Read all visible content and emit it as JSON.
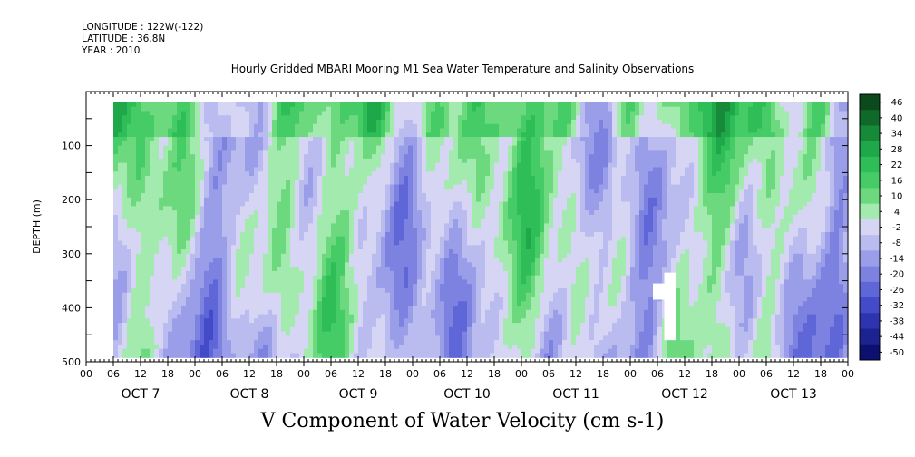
{
  "header": {
    "longitude": "LONGITUDE : 122W(-122)",
    "latitude": "LATITUDE : 36.8N",
    "year": "YEAR : 2010",
    "title": "Hourly Gridded MBARI Mooring M1 Sea Water Temperature and Salinity Observations"
  },
  "chart_data": {
    "type": "heatmap",
    "title": "Hourly Gridded MBARI Mooring M1 Sea Water Temperature and Salinity Observations",
    "xlabel": "V Component of Water Velocity (cm s-1)",
    "ylabel": "DEPTH (m)",
    "ylim": [
      500,
      0
    ],
    "yticks": [
      "100",
      "200",
      "300",
      "400",
      "500"
    ],
    "hour_ticks": [
      "00",
      "06",
      "12",
      "18",
      "00",
      "06",
      "12",
      "18",
      "00",
      "06",
      "12",
      "18",
      "00",
      "06",
      "12",
      "18",
      "00",
      "06",
      "12",
      "18",
      "00",
      "06",
      "12",
      "18",
      "00",
      "06",
      "12",
      "18",
      "00"
    ],
    "day_labels": [
      "OCT  7",
      "OCT  8",
      "OCT  9",
      "OCT 10",
      "OCT 11",
      "OCT 12",
      "OCT 13"
    ],
    "colorbar": {
      "labels": [
        "46",
        "40",
        "34",
        "28",
        "22",
        "16",
        "10",
        "4",
        "-2",
        "-8",
        "-14",
        "-20",
        "-26",
        "-32",
        "-38",
        "-44",
        "-50"
      ],
      "colors": [
        "#0a4a1c",
        "#0f6a2a",
        "#168a38",
        "#1fa84a",
        "#2ebd57",
        "#45cc66",
        "#6cd97f",
        "#a3eaae",
        "#d6d6f4",
        "#babcf0",
        "#9a9ee9",
        "#7d82e1",
        "#5f66d8",
        "#444bc8",
        "#2e34ad",
        "#1c2390",
        "#0c1170"
      ]
    },
    "data_extent": {
      "time_start": "OCT 7 06",
      "time_end": "OCT 13 24",
      "depth_top": 20,
      "depth_bottom": 485
    },
    "field_description": "Alternating bands of northward (green, positive) and southward (blue, negative) velocity; mostly -20 to +20 cm/s"
  }
}
